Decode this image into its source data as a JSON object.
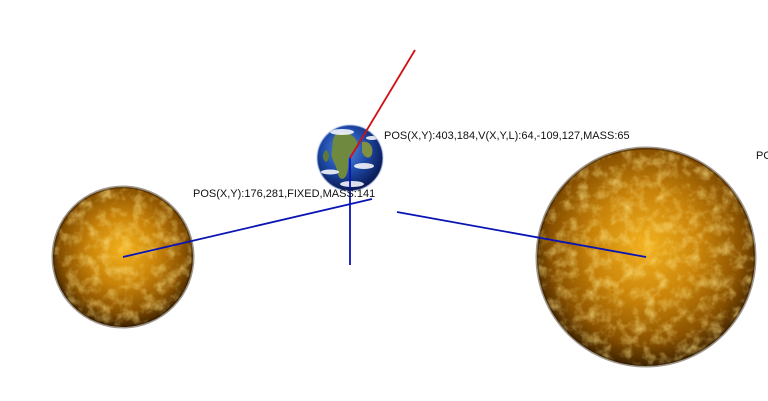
{
  "scene": {
    "background": "#ffffff",
    "force_line_color": "#0a14b4",
    "velocity_line_color": "#d01010"
  },
  "bodies": {
    "sun_left": {
      "kind": "sun",
      "label": "POS(X,Y):176,281,FIXED,MASS:141"
    },
    "earth": {
      "kind": "earth",
      "label": "POS(X,Y):403,184,V(X,Y,L):64,-109,127,MASS:65"
    },
    "sun_right": {
      "kind": "sun",
      "label": "PO"
    }
  },
  "palette": {
    "sun_core": "#f0a818",
    "sun_mid": "#c27d0a",
    "sun_edge": "#6a3c02",
    "sun_dark": "#3a2000",
    "earth_ocean": "#1f4fb0",
    "earth_land": "#5a7a3a",
    "earth_cloud": "#f4f6fa"
  }
}
